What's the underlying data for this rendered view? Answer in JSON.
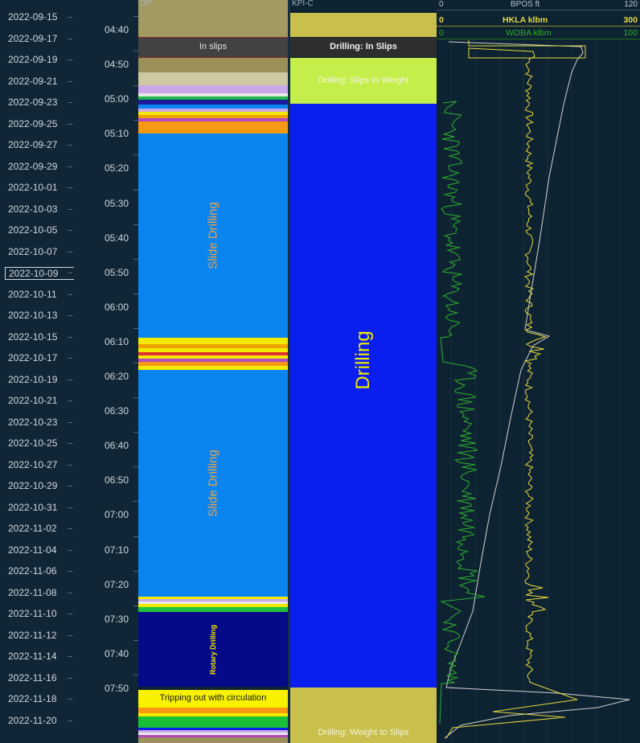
{
  "date_axis": {
    "labels": [
      "2022-09-15",
      "2022-09-17",
      "2022-09-19",
      "2022-09-21",
      "2022-09-23",
      "2022-09-25",
      "2022-09-27",
      "2022-09-29",
      "2022-10-01",
      "2022-10-03",
      "2022-10-05",
      "2022-10-07",
      "2022-10-09",
      "2022-10-11",
      "2022-10-13",
      "2022-10-15",
      "2022-10-17",
      "2022-10-19",
      "2022-10-21",
      "2022-10-23",
      "2022-10-25",
      "2022-10-27",
      "2022-10-29",
      "2022-10-31",
      "2022-11-02",
      "2022-11-04",
      "2022-11-06",
      "2022-11-08",
      "2022-11-10",
      "2022-11-12",
      "2022-11-14",
      "2022-11-16",
      "2022-11-18",
      "2022-11-20"
    ],
    "selected": "2022-10-09"
  },
  "time_axis": {
    "labels": [
      "04:40",
      "04:50",
      "05:00",
      "05:10",
      "05:20",
      "05:30",
      "05:40",
      "05:50",
      "06:00",
      "06:10",
      "06:20",
      "06:30",
      "06:40",
      "06:50",
      "07:00",
      "07:10",
      "07:20",
      "07:30",
      "07:40",
      "07:50"
    ]
  },
  "op_track": {
    "header": "OP",
    "in_slips": "In slips",
    "slide_drilling_1": "Slide Drilling",
    "slide_drilling_2": "Slide Drilling",
    "rotary_drilling": "Rotary Drilling",
    "tripping_out": "Tripping out with circulation"
  },
  "kpi_track": {
    "header": "KPI-C",
    "in_slips": "Drilling: In Slips",
    "slips_to_weight": "Drilling: Slips to Weight",
    "drilling": "Drilling",
    "weight_to_slips": "Drilling: Weight to Slips"
  },
  "curves_track": {
    "bpos": {
      "name": "BPOS ft",
      "min": "0",
      "max": "120",
      "color": "#d0d0d0"
    },
    "hkla": {
      "name": "HKLA klbm",
      "min": "0",
      "max": "300",
      "color": "#e6d840"
    },
    "woba": {
      "name": "WOBA klbm",
      "min": "0",
      "max": "100",
      "color": "#2fae2f"
    }
  },
  "colors": {
    "slide_blue": "#0a85f0",
    "drilling_blue": "#0a1ef0",
    "rotary_navy": "#060a88",
    "olive": "#c8bf4c",
    "lime": "#c4ee4a",
    "slips_dark": "#2e2e2e",
    "label_orange": "#f0a044"
  }
}
